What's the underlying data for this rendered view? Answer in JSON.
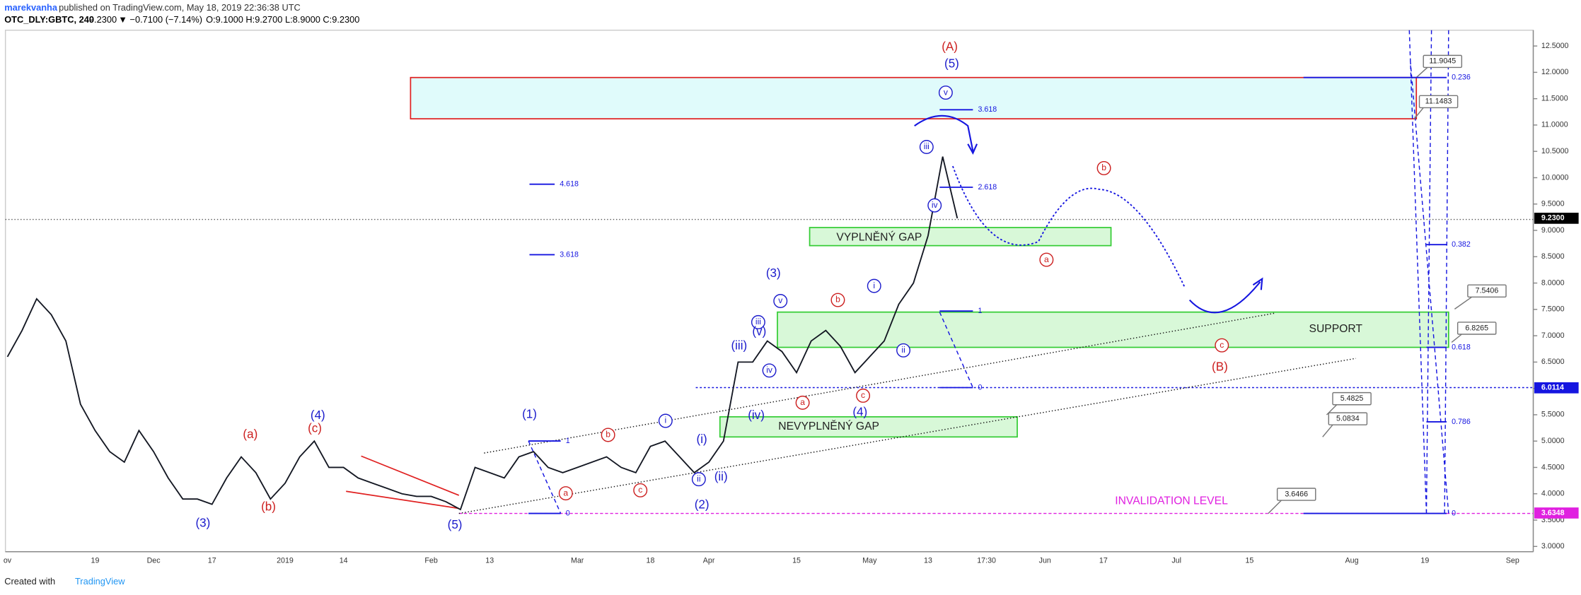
{
  "header": {
    "author": "marekvanha",
    "published": "published on TradingView.com, May 18, 2019 22:36:38 UTC",
    "symbol": "OTC_DLY:GBTC, 240",
    "last": "9.2300",
    "change": "▼ −0.7100 (−7.14%)",
    "ohlc": "O:9.1000 H:9.2700 L:8.9000 C:9.2300"
  },
  "footer": {
    "created": "Created with",
    "brand": "TradingView"
  },
  "chart_data": {
    "type": "line",
    "categories": [
      "ov",
      null,
      null,
      null,
      null,
      null,
      "19",
      null,
      null,
      null,
      "Dec",
      null,
      null,
      null,
      "17",
      null,
      null,
      null,
      null,
      "2019",
      null,
      null,
      null,
      "14",
      null,
      null,
      null,
      null,
      null,
      "Feb",
      null,
      null,
      null,
      "13",
      null,
      null,
      null,
      null,
      null,
      "Mar",
      null,
      null,
      null,
      null,
      "18",
      null,
      null,
      null,
      "Apr",
      null,
      null,
      null,
      null,
      null,
      "15",
      null,
      null,
      null,
      null,
      "May",
      null,
      null,
      null,
      "13",
      null,
      null,
      null,
      "17:30",
      null,
      null,
      null,
      "Jun",
      null,
      null,
      null,
      "17",
      null,
      null,
      null,
      null,
      "Jul",
      null,
      null,
      null,
      null,
      "15",
      null,
      null,
      null,
      null,
      null,
      null,
      "Aug",
      null,
      null,
      null,
      null,
      "19",
      null,
      null,
      null,
      null,
      null,
      "Sep"
    ],
    "series": [
      {
        "color": "#131722",
        "values": [
          6.6,
          7.1,
          7.7,
          7.4,
          6.9,
          5.7,
          5.2,
          4.8,
          4.6,
          5.2,
          4.8,
          4.3,
          3.9,
          3.9,
          3.8,
          4.3,
          4.7,
          4.4,
          3.9,
          4.2,
          4.7,
          5.0,
          4.5,
          4.5,
          4.3,
          4.2,
          4.1,
          4.0,
          3.95,
          3.95,
          3.85,
          3.7,
          4.5,
          4.4,
          4.3,
          4.7,
          4.8,
          4.5,
          4.4,
          4.5,
          4.6,
          4.7,
          4.5,
          4.4,
          4.9,
          5.0,
          4.7,
          4.4,
          4.6,
          5.0,
          6.5,
          6.5,
          6.9,
          6.7,
          6.3,
          6.9,
          7.1,
          6.8,
          6.3,
          6.6,
          6.9,
          7.6,
          8.0,
          8.9,
          10.4,
          9.23,
          null,
          null,
          null,
          null,
          null,
          null,
          null,
          null,
          null,
          null,
          null,
          null,
          null,
          null,
          null,
          null,
          null,
          null,
          null,
          null,
          null,
          null,
          null,
          null,
          null,
          null,
          null,
          null,
          null,
          null,
          null,
          null,
          null,
          null,
          null,
          null,
          null,
          null
        ]
      }
    ],
    "ylim": [
      2.9,
      12.8
    ],
    "yticks": [
      {
        "value": 3,
        "label": "3.0000"
      },
      {
        "value": 3.5,
        "label": "3.5000"
      },
      {
        "value": 4,
        "label": "4.0000"
      },
      {
        "value": 4.5,
        "label": "4.5000"
      },
      {
        "value": 5,
        "label": "5.0000"
      },
      {
        "value": 5.5,
        "label": "5.5000"
      },
      {
        "value": 6,
        "label": "6.0000"
      },
      {
        "value": 6.5,
        "label": "6.5000"
      },
      {
        "value": 7,
        "label": "7.0000"
      },
      {
        "value": 7.5,
        "label": "7.5000"
      },
      {
        "value": 8,
        "label": "8.0000"
      },
      {
        "value": 8.5,
        "label": "8.5000"
      },
      {
        "value": 9,
        "label": "9.0000"
      },
      {
        "value": 9.5,
        "label": "9.5000"
      },
      {
        "value": 10,
        "label": "10.0000"
      },
      {
        "value": 10.5,
        "label": "10.5000"
      },
      {
        "value": 11,
        "label": "11.0000"
      },
      {
        "value": 11.5,
        "label": "11.5000"
      },
      {
        "value": 12,
        "label": "12.0000"
      },
      {
        "value": 12.5,
        "label": "12.5000"
      }
    ],
    "price_labels": [
      {
        "value": 9.23,
        "label": "9.2300",
        "color": "#000000"
      },
      {
        "value": 6.0114,
        "label": "6.0114",
        "color": "#1515e0"
      },
      {
        "value": 3.6348,
        "label": "3.6348",
        "color": "#e020e0"
      }
    ],
    "zones": [
      "VYPLNĚNÝ GAP",
      "SUPPORT",
      "NEVYPLNĚNÝ GAP",
      "INVALIDATION LEVEL"
    ],
    "callouts": [
      "11.9045",
      "11.1483",
      "7.5406",
      "6.8265",
      "5.4825",
      "5.0834",
      "3.6466"
    ],
    "fib_labels": [
      "0.236",
      "0.382",
      "0.618",
      "0.786",
      "0",
      "4.618",
      "3.618",
      "3.618",
      "2.618",
      "1",
      "0",
      "1",
      "0"
    ],
    "annotations": [
      {
        "text": "(A)",
        "color": "#cc1f1f"
      },
      {
        "text": "(5)",
        "color": "#1c1ccc"
      },
      {
        "text": "v",
        "color": "#1c1ccc"
      },
      {
        "text": "iii",
        "color": "#1c1ccc"
      },
      {
        "text": "iv",
        "color": "#1c1ccc"
      },
      {
        "text": "b",
        "color": "#cc1f1f"
      },
      {
        "text": "a",
        "color": "#cc1f1f"
      },
      {
        "text": "(B)",
        "color": "#cc1f1f"
      },
      {
        "text": "c",
        "color": "#cc1f1f"
      },
      {
        "text": "(3)",
        "color": "#1c1ccc"
      },
      {
        "text": "v",
        "color": "#1c1ccc"
      },
      {
        "text": "iii",
        "color": "#1c1ccc"
      },
      {
        "text": "(iii)",
        "color": "#1c1ccc"
      },
      {
        "text": "(v)",
        "color": "#1c1ccc"
      },
      {
        "text": "iv",
        "color": "#1c1ccc"
      },
      {
        "text": "(iv)",
        "color": "#1c1ccc"
      },
      {
        "text": "a",
        "color": "#cc1f1f"
      },
      {
        "text": "b",
        "color": "#cc1f1f"
      },
      {
        "text": "c",
        "color": "#cc1f1f"
      },
      {
        "text": "(4)",
        "color": "#1c1ccc"
      },
      {
        "text": "i",
        "color": "#1c1ccc"
      },
      {
        "text": "ii",
        "color": "#1c1ccc"
      },
      {
        "text": "(1)",
        "color": "#1c1ccc"
      },
      {
        "text": "b",
        "color": "#cc1f1f"
      },
      {
        "text": "a",
        "color": "#cc1f1f"
      },
      {
        "text": "c",
        "color": "#cc1f1f"
      },
      {
        "text": "i",
        "color": "#1c1ccc"
      },
      {
        "text": "(i)",
        "color": "#1c1ccc"
      },
      {
        "text": "ii",
        "color": "#1c1ccc"
      },
      {
        "text": "(ii)",
        "color": "#1c1ccc"
      },
      {
        "text": "(2)",
        "color": "#1c1ccc"
      },
      {
        "text": "(5)",
        "color": "#1c1ccc"
      },
      {
        "text": "(3)",
        "color": "#1c1ccc"
      },
      {
        "text": "(a)",
        "color": "#cc1f1f"
      },
      {
        "text": "(b)",
        "color": "#cc1f1f"
      },
      {
        "text": "(c)",
        "color": "#cc1f1f"
      },
      {
        "text": "(4)",
        "color": "#1c1ccc"
      }
    ]
  }
}
